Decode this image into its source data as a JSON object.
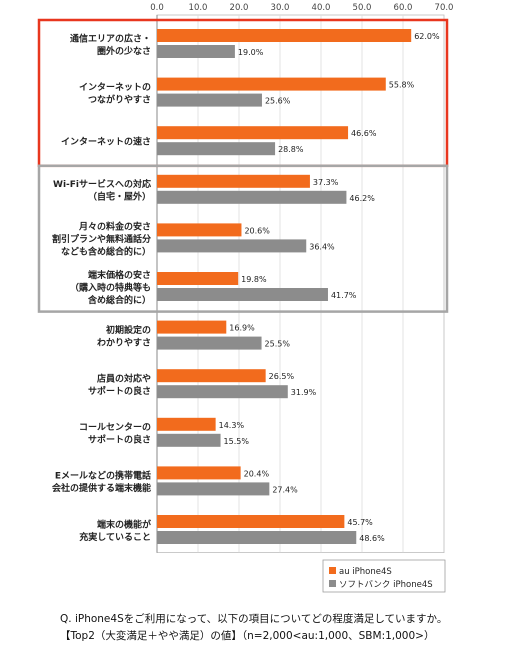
{
  "chart_data": {
    "type": "bar",
    "orientation": "horizontal",
    "xlim": [
      0,
      70
    ],
    "xticks": [
      "0.0",
      "10.0",
      "20.0",
      "30.0",
      "40.0",
      "50.0",
      "60.0",
      "70.0"
    ],
    "grid": true,
    "legend_position": "bottom-right",
    "categories": [
      [
        "通信エリアの広さ・",
        "圏外の少なさ"
      ],
      [
        "インターネットの",
        "つながりやすさ"
      ],
      [
        "インターネットの速さ"
      ],
      [
        "Wi-Fiサービスへの対応",
        "（自宅・屋外）"
      ],
      [
        "月々の料金の安さ",
        "割引プランや無料通話分",
        "なども含め総合的に）"
      ],
      [
        "端末価格の安さ",
        "（購入時の特典等も",
        "含め総合的に）"
      ],
      [
        "初期設定の",
        "わかりやすさ"
      ],
      [
        "店員の対応や",
        "サポートの良さ"
      ],
      [
        "コールセンターの",
        "サポートの良さ"
      ],
      [
        "Eメールなどの携帯電話",
        "会社の提供する端末機能"
      ],
      [
        "端末の機能が",
        "充実していること"
      ]
    ],
    "series": [
      {
        "name": "au iPhone4S",
        "color": "#f26b1d",
        "values": [
          62.0,
          55.8,
          46.6,
          37.3,
          20.6,
          19.8,
          16.9,
          26.5,
          14.3,
          20.4,
          45.7
        ],
        "labels": [
          "62.0%",
          "55.8%",
          "46.6%",
          "37.3%",
          "20.6%",
          "19.8%",
          "16.9%",
          "26.5%",
          "14.3%",
          "20.4%",
          "45.7%"
        ]
      },
      {
        "name": "ソフトバンク iPhone4S",
        "color": "#8c8c8c",
        "values": [
          19.0,
          25.6,
          28.8,
          46.2,
          36.4,
          41.7,
          25.5,
          31.9,
          15.5,
          27.4,
          48.6
        ],
        "labels": [
          "19.0%",
          "25.6%",
          "28.8%",
          "46.2%",
          "36.4%",
          "41.7%",
          "25.5%",
          "31.9%",
          "15.5%",
          "27.4%",
          "48.6%"
        ]
      }
    ],
    "highlight_groups": [
      {
        "rows": [
          0,
          2
        ],
        "color": "#e8361e"
      },
      {
        "rows": [
          3,
          5
        ],
        "color": "#a6a6a6"
      }
    ]
  },
  "caption": {
    "line1": "Q. iPhone4Sをご利用になって、以下の項目についてどの程度満足していますか。",
    "line2": "【Top2（大変満足＋やや満足）の値】（n=2,000<au:1,000、SBM:1,000>）"
  }
}
